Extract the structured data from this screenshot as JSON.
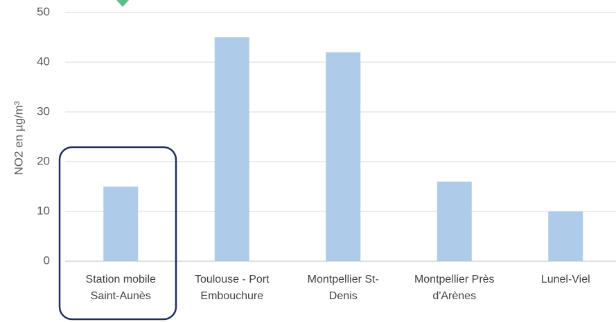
{
  "chart_data": {
    "type": "bar",
    "y_label": "NO2 en µg/m³",
    "categories": [
      "Station mobile Saint-Aunès",
      "Toulouse - Port Embouchure",
      "Montpellier St-Denis",
      "Montpellier Près d'Arènes",
      "Lunel-Viel"
    ],
    "values": [
      15,
      45,
      42,
      16,
      10
    ],
    "color": "#aecbe9",
    "ylim": [
      0,
      50
    ],
    "yticks": [
      0,
      10,
      20,
      30,
      40,
      50
    ],
    "grid": true
  }
}
